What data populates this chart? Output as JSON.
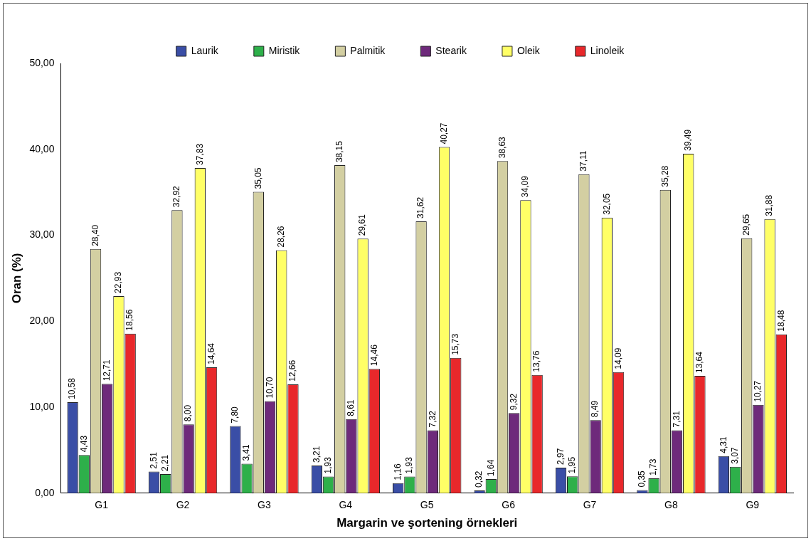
{
  "chart_data": {
    "type": "bar",
    "xlabel": "Margarin ve şortening örnekleri",
    "ylabel": "Oran (%)",
    "categories": [
      "G1",
      "G2",
      "G3",
      "G4",
      "G5",
      "G6",
      "G7",
      "G8",
      "G9"
    ],
    "ylim": [
      0,
      50
    ],
    "yticks": [
      {
        "value": 0,
        "label": "0,00"
      },
      {
        "value": 10,
        "label": "10,00"
      },
      {
        "value": 20,
        "label": "20,00"
      },
      {
        "value": 30,
        "label": "30,00"
      },
      {
        "value": 40,
        "label": "40,00"
      },
      {
        "value": 50,
        "label": "50,00"
      }
    ],
    "grid": false,
    "legend": "top",
    "series": [
      {
        "name": "Laurik",
        "color": "#3a4ea6",
        "values": [
          10.58,
          2.51,
          7.8,
          3.21,
          1.16,
          0.32,
          2.97,
          0.35,
          4.31
        ],
        "value_labels": [
          "10,58",
          "2,51",
          "7,80",
          "3,21",
          "1,16",
          "0,32",
          "2,97",
          "0,35",
          "4,31"
        ]
      },
      {
        "name": "Miristik",
        "color": "#2eb04a",
        "values": [
          4.43,
          2.21,
          3.41,
          1.93,
          1.93,
          1.64,
          1.95,
          1.73,
          3.07
        ],
        "value_labels": [
          "4,43",
          "2,21",
          "3,41",
          "1,93",
          "1,93",
          "1,64",
          "1,95",
          "1,73",
          "3,07"
        ]
      },
      {
        "name": "Palmitik",
        "color": "#d3cfa2",
        "values": [
          28.4,
          32.92,
          35.05,
          38.15,
          31.62,
          38.63,
          37.11,
          35.28,
          29.65
        ],
        "value_labels": [
          "28,40",
          "32,92",
          "35,05",
          "38,15",
          "31,62",
          "38,63",
          "37,11",
          "35,28",
          "29,65"
        ]
      },
      {
        "name": "Stearik",
        "color": "#6e2a7b",
        "values": [
          12.71,
          8.0,
          10.7,
          8.61,
          7.32,
          9.32,
          8.49,
          7.31,
          10.27
        ],
        "value_labels": [
          "12,71",
          "8,00",
          "10,70",
          "8,61",
          "7,32",
          "9,32",
          "8,49",
          "7,31",
          "10,27"
        ]
      },
      {
        "name": "Oleik",
        "color": "#ffff66",
        "values": [
          22.93,
          37.83,
          28.26,
          29.61,
          40.27,
          34.09,
          32.05,
          39.49,
          31.88
        ],
        "value_labels": [
          "22,93",
          "37,83",
          "28,26",
          "29,61",
          "40,27",
          "34,09",
          "32,05",
          "39,49",
          "31,88"
        ]
      },
      {
        "name": "Linoleik",
        "color": "#e8282b",
        "values": [
          18.56,
          14.64,
          12.66,
          14.46,
          15.73,
          13.76,
          14.09,
          13.64,
          18.48
        ],
        "value_labels": [
          "18,56",
          "14,64",
          "12,66",
          "14,46",
          "15,73",
          "13,76",
          "14,09",
          "13,64",
          "18,48"
        ]
      }
    ]
  }
}
